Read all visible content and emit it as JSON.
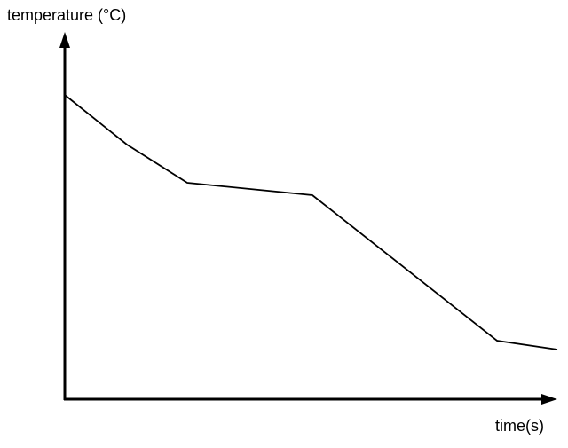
{
  "y_axis_label": "temperature (°C)",
  "x_axis_label": "time(s)"
}
